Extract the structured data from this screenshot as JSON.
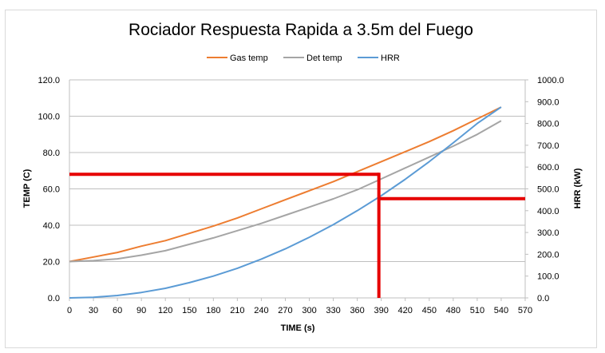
{
  "chart_data": {
    "type": "line",
    "title": "Rociador Respuesta Rapida a 3.5m del Fuego",
    "xlabel": "TIME (s)",
    "ylabel": "TEMP (C)",
    "y2label": "HRR (kW)",
    "xlim": [
      0,
      570
    ],
    "ylim": [
      0,
      120
    ],
    "y2lim": [
      0,
      1000
    ],
    "x_ticks": [
      "0",
      "30",
      "60",
      "90",
      "120",
      "150",
      "180",
      "210",
      "240",
      "270",
      "300",
      "330",
      "360",
      "390",
      "420",
      "450",
      "480",
      "510",
      "540",
      "570"
    ],
    "y_ticks": [
      "0.0",
      "20.0",
      "40.0",
      "60.0",
      "80.0",
      "100.0",
      "120.0"
    ],
    "y2_ticks": [
      "0.0",
      "100.0",
      "200.0",
      "300.0",
      "400.0",
      "500.0",
      "600.0",
      "700.0",
      "800.0",
      "900.0",
      "1000.0"
    ],
    "grid": "horizontal",
    "legend_position": "top",
    "x": [
      0,
      30,
      60,
      90,
      120,
      150,
      180,
      210,
      240,
      270,
      300,
      330,
      360,
      390,
      420,
      450,
      480,
      510,
      540
    ],
    "series": [
      {
        "name": "Gas temp",
        "axis": "left",
        "color": "#ed7d31",
        "values": [
          20.0,
          22.5,
          25.0,
          28.5,
          31.5,
          35.5,
          39.5,
          44.0,
          49.0,
          54.0,
          59.0,
          64.0,
          69.5,
          75.0,
          80.5,
          86.0,
          92.0,
          98.5,
          105.0
        ]
      },
      {
        "name": "Det temp",
        "axis": "left",
        "color": "#a5a5a5",
        "values": [
          20.0,
          20.5,
          21.5,
          23.5,
          26.0,
          29.5,
          33.0,
          37.0,
          41.0,
          45.5,
          50.0,
          54.5,
          59.5,
          65.5,
          71.5,
          77.5,
          83.5,
          90.0,
          97.5
        ]
      },
      {
        "name": "HRR",
        "axis": "right",
        "color": "#5b9bd5",
        "values": [
          0,
          3,
          11,
          25,
          44,
          70,
          100,
          136,
          178,
          225,
          278,
          336,
          400,
          469,
          544,
          625,
          711,
          800,
          875
        ]
      }
    ],
    "annotations": {
      "color": "#e60000",
      "activation_time": 387,
      "temp_level": 68.0,
      "hrr_level": 455
    }
  }
}
